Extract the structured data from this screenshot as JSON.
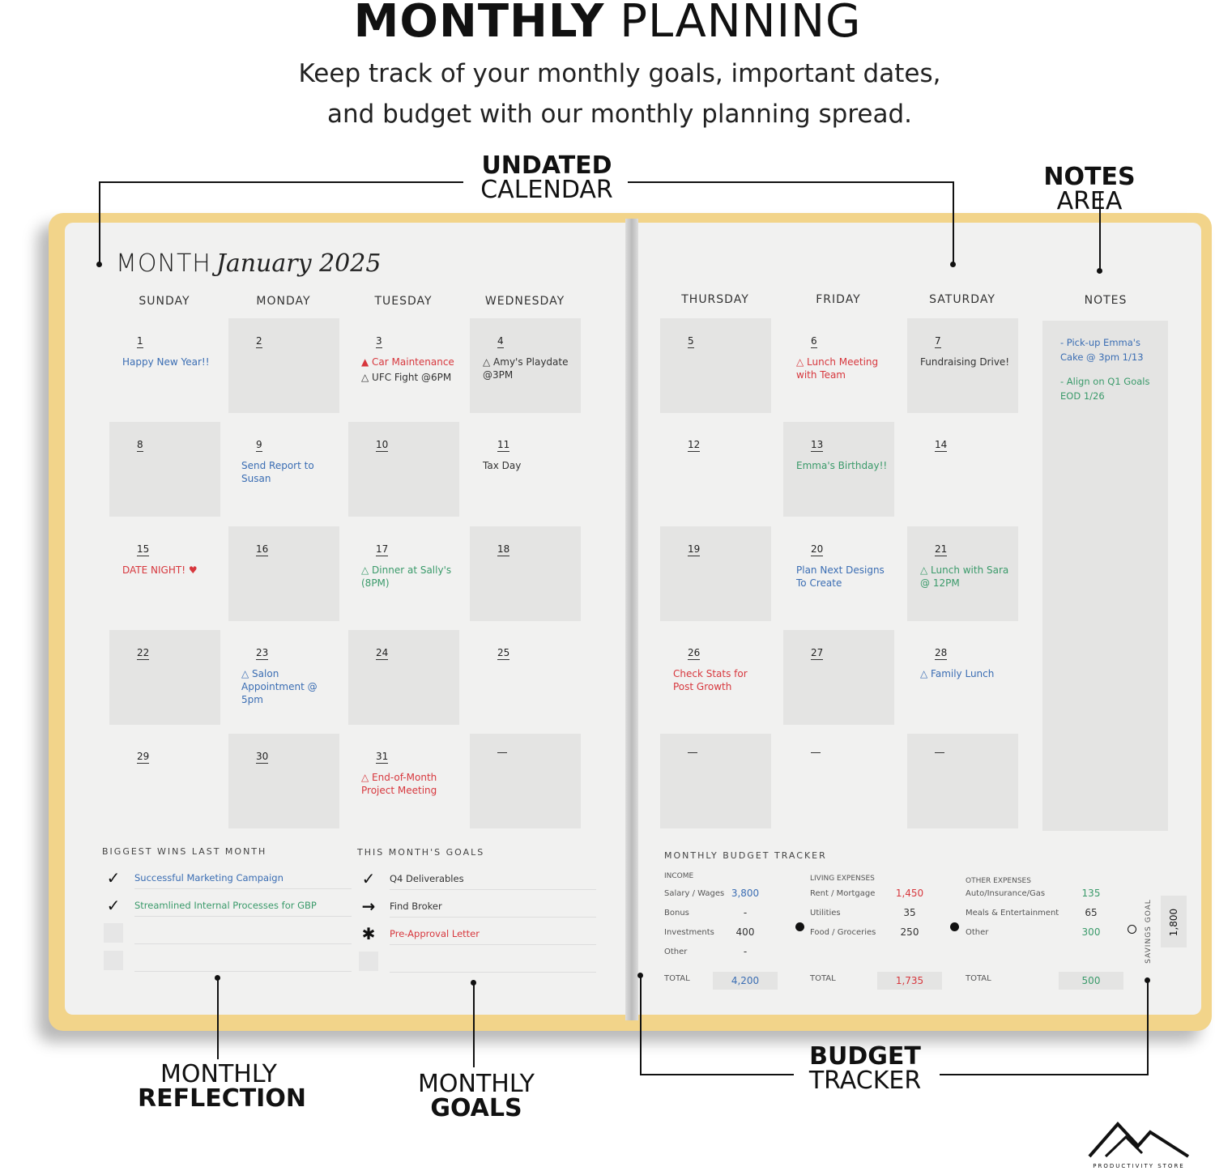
{
  "header": {
    "title_bold": "MONTHLY",
    "title_rest": "PLANNING",
    "subtitle_1": "Keep track of your monthly goals, important dates,",
    "subtitle_2": "and budget with our monthly planning spread."
  },
  "callouts": {
    "calendar_bold": "UNDATED",
    "calendar_rest": "CALENDAR",
    "notes_bold": "NOTES",
    "notes_rest": "AREA",
    "reflection_top": "MONTHLY",
    "reflection_bold": "REFLECTION",
    "goals_top": "MONTHLY",
    "goals_bold": "GOALS",
    "budget_bold": "BUDGET",
    "budget_rest": "TRACKER"
  },
  "calendar": {
    "month_label": "MONTH",
    "month_value": "January 2025",
    "days": [
      "SUNDAY",
      "MONDAY",
      "TUESDAY",
      "WEDNESDAY",
      "THURSDAY",
      "FRIDAY",
      "SATURDAY"
    ],
    "notes_header": "NOTES",
    "colors": {
      "blue": "#3a6db3",
      "red": "#d7373d",
      "green": "#3a9a6a",
      "dark": "#333333"
    },
    "weeks": [
      [
        {
          "d": "1",
          "e": [
            {
              "t": "Happy New Year!!",
              "c": "blue"
            }
          ]
        },
        {
          "d": "2",
          "e": []
        },
        {
          "d": "3",
          "e": [
            {
              "t": "▲ Car Maintenance",
              "c": "red"
            },
            {
              "t": "△ UFC Fight @6PM",
              "c": "dark"
            }
          ]
        },
        {
          "d": "4",
          "e": [
            {
              "t": "△ Amy's Playdate @3PM",
              "c": "dark"
            }
          ]
        },
        {
          "d": "5",
          "e": []
        },
        {
          "d": "6",
          "e": [
            {
              "t": "△ Lunch Meeting with Team",
              "c": "red"
            }
          ]
        },
        {
          "d": "7",
          "e": [
            {
              "t": "Fundraising Drive!",
              "c": "dark"
            }
          ]
        }
      ],
      [
        {
          "d": "8",
          "e": []
        },
        {
          "d": "9",
          "e": [
            {
              "t": "Send Report to Susan",
              "c": "blue"
            }
          ]
        },
        {
          "d": "10",
          "e": []
        },
        {
          "d": "11",
          "e": [
            {
              "t": "Tax Day",
              "c": "dark"
            }
          ]
        },
        {
          "d": "12",
          "e": []
        },
        {
          "d": "13",
          "e": [
            {
              "t": "Emma's Birthday!!",
              "c": "green"
            }
          ]
        },
        {
          "d": "14",
          "e": []
        }
      ],
      [
        {
          "d": "15",
          "e": [
            {
              "t": "DATE NIGHT! ♥",
              "c": "red"
            }
          ]
        },
        {
          "d": "16",
          "e": []
        },
        {
          "d": "17",
          "e": [
            {
              "t": "△ Dinner at Sally's (8PM)",
              "c": "green"
            }
          ]
        },
        {
          "d": "18",
          "e": []
        },
        {
          "d": "19",
          "e": []
        },
        {
          "d": "20",
          "e": [
            {
              "t": "Plan Next Designs To Create",
              "c": "blue"
            }
          ]
        },
        {
          "d": "21",
          "e": [
            {
              "t": "△ Lunch with Sara @ 12PM",
              "c": "green"
            }
          ]
        }
      ],
      [
        {
          "d": "22",
          "e": []
        },
        {
          "d": "23",
          "e": [
            {
              "t": "△ Salon Appointment @ 5pm",
              "c": "blue"
            }
          ]
        },
        {
          "d": "24",
          "e": []
        },
        {
          "d": "25",
          "e": []
        },
        {
          "d": "26",
          "e": [
            {
              "t": "Check Stats for Post Growth",
              "c": "red"
            }
          ]
        },
        {
          "d": "27",
          "e": []
        },
        {
          "d": "28",
          "e": [
            {
              "t": "△ Family Lunch",
              "c": "blue"
            }
          ]
        }
      ],
      [
        {
          "d": "29",
          "e": []
        },
        {
          "d": "30",
          "e": []
        },
        {
          "d": "31",
          "e": [
            {
              "t": "△ End-of-Month Project Meeting",
              "c": "red"
            }
          ]
        },
        {
          "d": "",
          "e": []
        },
        {
          "d": "",
          "e": []
        },
        {
          "d": "",
          "e": []
        },
        {
          "d": "",
          "e": []
        }
      ]
    ],
    "notes": [
      {
        "t": "- Pick-up Emma's Cake @ 3pm 1/13",
        "c": "blue"
      },
      {
        "t": "- Align on Q1 Goals EOD 1/26",
        "c": "green"
      }
    ]
  },
  "reflection": {
    "title": "BIGGEST WINS LAST MONTH",
    "items": [
      {
        "mark": "✓",
        "t": "Successful Marketing Campaign",
        "c": "blue"
      },
      {
        "mark": "✓",
        "t": "Streamlined Internal Processes for GBP",
        "c": "green"
      },
      {
        "mark": "",
        "t": "",
        "c": "dark"
      },
      {
        "mark": "",
        "t": "",
        "c": "dark"
      }
    ]
  },
  "goals": {
    "title": "THIS MONTH'S GOALS",
    "items": [
      {
        "mark": "✓",
        "t": "Q4 Deliverables",
        "c": "dark"
      },
      {
        "mark": "→",
        "t": "Find Broker",
        "c": "dark"
      },
      {
        "mark": "✱",
        "t": "Pre-Approval Letter",
        "c": "red"
      },
      {
        "mark": "",
        "t": "",
        "c": "dark"
      }
    ]
  },
  "budget": {
    "title": "MONTHLY BUDGET TRACKER",
    "total_label": "TOTAL",
    "savings_label": "SAVINGS GOAL",
    "savings_value": "1,800",
    "groups": [
      {
        "title": "INCOME",
        "rows": [
          {
            "l": "Salary / Wages",
            "v": "3,800",
            "c": "blue"
          },
          {
            "l": "Bonus",
            "v": "-",
            "c": "dark"
          },
          {
            "l": "Investments",
            "v": "400",
            "c": "dark"
          },
          {
            "l": "Other",
            "v": "-",
            "c": "dark"
          }
        ],
        "total": "4,200",
        "tc": "blue"
      },
      {
        "title": "LIVING EXPENSES",
        "rows": [
          {
            "l": "Rent / Mortgage",
            "v": "1,450",
            "c": "red"
          },
          {
            "l": "Utilities",
            "v": "35",
            "c": "dark"
          },
          {
            "l": "Food / Groceries",
            "v": "250",
            "c": "dark"
          }
        ],
        "total": "1,735",
        "tc": "red"
      },
      {
        "title": "OTHER EXPENSES",
        "rows": [
          {
            "l": "Auto/Insurance/Gas",
            "v": "135",
            "c": "green"
          },
          {
            "l": "Meals & Entertainment",
            "v": "65",
            "c": "dark"
          },
          {
            "l": "Other",
            "v": "300",
            "c": "green"
          }
        ],
        "total": "500",
        "tc": "green"
      }
    ]
  },
  "brand": {
    "name": "PRODUCTIVITY STORE"
  }
}
